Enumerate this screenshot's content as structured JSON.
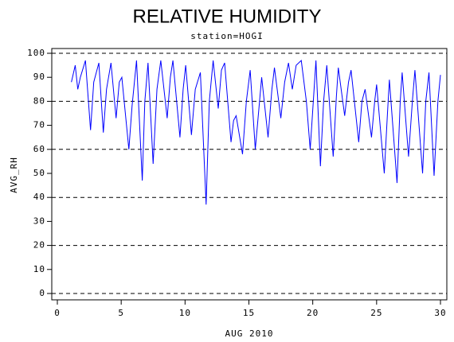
{
  "chart_data": {
    "type": "line",
    "title": "RELATIVE HUMIDITY",
    "subtitle": "station=HOGI",
    "xlabel": "AUG 2010",
    "ylabel": "AVG_RH",
    "xlim": [
      0,
      30
    ],
    "xticks": [
      0,
      5,
      10,
      15,
      20,
      25,
      30
    ],
    "ylim": [
      0,
      100
    ],
    "yticks": [
      0,
      10,
      20,
      30,
      40,
      50,
      60,
      70,
      80,
      90,
      100
    ],
    "grid_lines": [
      0,
      20,
      40,
      60,
      80,
      100
    ],
    "series": [
      {
        "color": "#0000ff",
        "x": [
          1.1,
          1.4,
          1.6,
          1.8,
          2.2,
          2.6,
          2.85,
          3.25,
          3.6,
          3.85,
          4.2,
          4.6,
          4.85,
          5.05,
          5.6,
          5.85,
          6.2,
          6.65,
          6.85,
          7.1,
          7.5,
          7.8,
          8.1,
          8.6,
          8.85,
          9.05,
          9.6,
          9.85,
          10.05,
          10.5,
          10.8,
          11.2,
          11.65,
          11.9,
          12.2,
          12.6,
          12.85,
          13.1,
          13.6,
          13.8,
          14.0,
          14.5,
          14.8,
          15.1,
          15.5,
          15.8,
          16.0,
          16.5,
          16.8,
          17.0,
          17.5,
          17.8,
          18.1,
          18.4,
          18.7,
          19.1,
          19.5,
          19.8,
          20.25,
          20.6,
          20.85,
          21.1,
          21.6,
          21.85,
          22.0,
          22.5,
          22.8,
          23.0,
          23.6,
          23.85,
          24.1,
          24.6,
          24.85,
          25.0,
          25.6,
          25.85,
          26.0,
          26.6,
          26.85,
          27.0,
          27.5,
          27.8,
          28.0,
          28.6,
          28.85,
          29.1,
          29.5,
          29.8,
          30.0
        ],
        "values": [
          88,
          95,
          85,
          90,
          97,
          68,
          88,
          96,
          67,
          85,
          96,
          73,
          88,
          90,
          60,
          78,
          97,
          47,
          80,
          96,
          54,
          85,
          97,
          73,
          90,
          97,
          65,
          85,
          95,
          66,
          85,
          92,
          37,
          80,
          97,
          77,
          93,
          96,
          63,
          72,
          74,
          58,
          80,
          93,
          60,
          78,
          90,
          65,
          85,
          94,
          73,
          88,
          96,
          85,
          95,
          97,
          80,
          60,
          97,
          53,
          80,
          95,
          57,
          82,
          94,
          74,
          88,
          93,
          63,
          80,
          85,
          65,
          80,
          87,
          50,
          75,
          89,
          46,
          80,
          92,
          57,
          80,
          93,
          50,
          80,
          92,
          49,
          80,
          91
        ]
      }
    ]
  }
}
